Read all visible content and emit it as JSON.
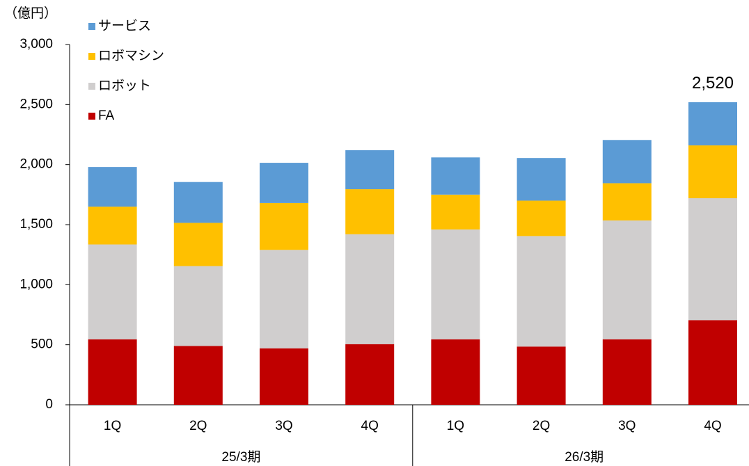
{
  "chart_data": {
    "type": "stacked_bar",
    "y_unit": "（億円）",
    "groups": [
      {
        "name": "25/3期",
        "categories": [
          "1Q",
          "2Q",
          "3Q",
          "4Q"
        ]
      },
      {
        "name": "26/3期",
        "categories": [
          "1Q",
          "2Q",
          "3Q",
          "4Q"
        ]
      }
    ],
    "series": [
      {
        "name": "FA",
        "color": "#c00000",
        "values": [
          545,
          490,
          470,
          505,
          545,
          485,
          545,
          705
        ]
      },
      {
        "name": "ロボット",
        "color": "#d0cece",
        "values": [
          790,
          665,
          820,
          915,
          915,
          920,
          990,
          1015
        ]
      },
      {
        "name": "ロボマシン",
        "color": "#ffc000",
        "values": [
          315,
          360,
          390,
          375,
          290,
          295,
          310,
          440
        ]
      },
      {
        "name": "サービス",
        "color": "#5b9bd5",
        "values": [
          330,
          340,
          335,
          325,
          310,
          355,
          360,
          360
        ]
      }
    ],
    "annotations": [
      {
        "label": "2,520",
        "value": 2520
      }
    ],
    "ylim": [
      0,
      3000
    ],
    "yticks": [
      0,
      500,
      {
        "value": 1000,
        "label": "1,000"
      },
      {
        "value": 1500,
        "label": "1,500"
      },
      {
        "value": 2000,
        "label": "2,000"
      },
      {
        "value": 2500,
        "label": "2,500"
      },
      {
        "value": 3000,
        "label": "3,000"
      }
    ],
    "legend": "top-left"
  }
}
